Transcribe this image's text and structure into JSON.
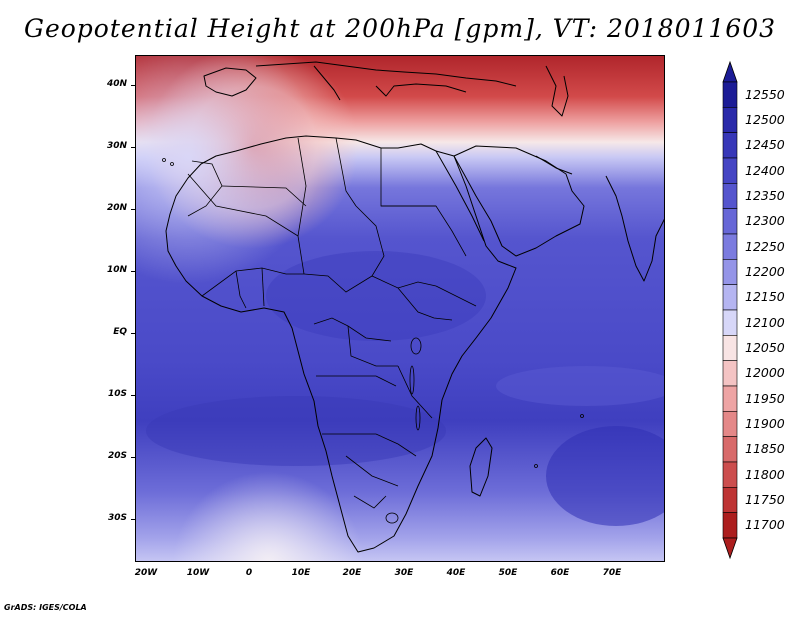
{
  "title": "Geopotential Height at 200hPa [gpm], VT: 2018011603",
  "map": {
    "lat_labels": [
      "40N",
      "30N",
      "20N",
      "10N",
      "EQ",
      "10S",
      "20S",
      "30S"
    ],
    "lon_labels": [
      "20W",
      "10W",
      "0",
      "10E",
      "20E",
      "30E",
      "40E",
      "50E",
      "60E",
      "70E"
    ]
  },
  "colorbar": {
    "levels": [
      "12550",
      "12500",
      "12450",
      "12400",
      "12350",
      "12300",
      "12250",
      "12200",
      "12150",
      "12100",
      "12050",
      "12000",
      "11950",
      "11900",
      "11850",
      "11800",
      "11750",
      "11700"
    ],
    "colors": [
      "#1c1c96",
      "#2a2aaa",
      "#3737b8",
      "#4545c4",
      "#5555ce",
      "#6767d7",
      "#7b7bdf",
      "#9595e8",
      "#b5b5f1",
      "#d7d7f8",
      "#f8e4e4",
      "#f4c4c4",
      "#eea4a4",
      "#e48888",
      "#d86a6a",
      "#cc4e4e",
      "#be3434",
      "#ac1e1e"
    ]
  },
  "credit": "GrADS: IGES/COLA"
}
